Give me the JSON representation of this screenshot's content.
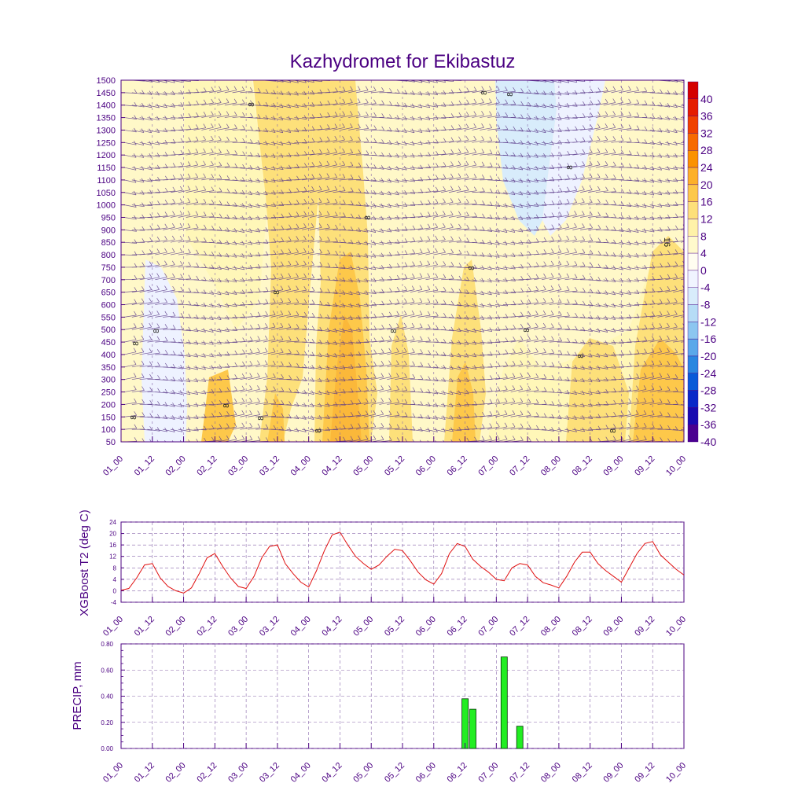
{
  "title": "Kazhydromet for Ekibastuz",
  "colors": {
    "text": "#4b0082",
    "frame": "#4b0082",
    "t2_line": "#e01010",
    "precip_bar": "#22ee22",
    "wind_barb": "#5a3a8a"
  },
  "time_ticks": [
    "01_00",
    "01_12",
    "02_00",
    "02_12",
    "03_00",
    "03_12",
    "04_00",
    "04_12",
    "05_00",
    "05_12",
    "06_00",
    "06_12",
    "07_00",
    "07_12",
    "08_00",
    "08_12",
    "09_00",
    "09_12",
    "10_00"
  ],
  "cross_section": {
    "type": "contour",
    "y_ticks": [
      "1500",
      "1450",
      "1400",
      "1350",
      "1300",
      "1250",
      "1200",
      "1150",
      "1100",
      "1050",
      "1000",
      "950",
      "900",
      "850",
      "800",
      "750",
      "700",
      "650",
      "600",
      "550",
      "500",
      "450",
      "400",
      "350",
      "300",
      "250",
      "200",
      "150",
      "100",
      "50"
    ],
    "colorbar_labels": [
      "40",
      "36",
      "32",
      "28",
      "24",
      "20",
      "16",
      "12",
      "8",
      "4",
      "0",
      "-4",
      "-8",
      "-12",
      "-16",
      "-20",
      "-24",
      "-28",
      "-32",
      "-36",
      "-40"
    ],
    "colorbar_colors": [
      "#d40000",
      "#e51c00",
      "#f04000",
      "#f76a00",
      "#fb9200",
      "#fdb02a",
      "#fdc84a",
      "#fde07a",
      "#fff2a8",
      "#fffacc",
      "#fffdf0",
      "#f0f4ff",
      "#d8ecfb",
      "#b6dcf6",
      "#8cc6f0",
      "#5aa8ea",
      "#2a86e0",
      "#0a5ad8",
      "#0a28c8",
      "#1a0ab0",
      "#4a0090"
    ],
    "contour_labels": [
      "8",
      "8",
      "8",
      "8",
      "8",
      "8",
      "8",
      "8",
      "8",
      "8",
      "8",
      "8",
      "8",
      "8",
      "8",
      "8",
      "8",
      "16"
    ]
  },
  "t2_panel": {
    "type": "line",
    "ylabel": "XGBoost T2 (deg C)",
    "y_ticks": [
      "24",
      "20",
      "16",
      "12",
      "8",
      "4",
      "0",
      "-4"
    ],
    "ylim": [
      -4,
      24
    ],
    "x": [
      0,
      1,
      2,
      3,
      4,
      5,
      6,
      7,
      8,
      9,
      10,
      11,
      12,
      13,
      14,
      15,
      16,
      17,
      18,
      19,
      20,
      21,
      22,
      23,
      24,
      25,
      26,
      27,
      28,
      29,
      30,
      31,
      32,
      33,
      34,
      35,
      36,
      37,
      38,
      39,
      40,
      41,
      42,
      43,
      44,
      45,
      46,
      47,
      48,
      49,
      50,
      51,
      52,
      53,
      54,
      55,
      56,
      57,
      58,
      59,
      60,
      61,
      62,
      63,
      64,
      65,
      66,
      67,
      68,
      69,
      70,
      71,
      72
    ],
    "values": [
      0.2,
      0.8,
      4.5,
      9,
      9.5,
      4.5,
      1.5,
      0,
      -0.8,
      1,
      6,
      11.5,
      13,
      8.5,
      4.5,
      1.5,
      0.8,
      5,
      11.5,
      15.5,
      16,
      9.5,
      6,
      3,
      1.3,
      7,
      14,
      19.5,
      20.5,
      16,
      12,
      9.5,
      7.5,
      9,
      12,
      14.5,
      14,
      10.5,
      6.5,
      3.8,
      2.3,
      6,
      13,
      16.5,
      15.5,
      11,
      8.5,
      6.5,
      4,
      3.5,
      8,
      9.5,
      9,
      5,
      2.8,
      2,
      1,
      5,
      10,
      13.5,
      13.5,
      9.5,
      7,
      5,
      3,
      8,
      13,
      16.5,
      17.2,
      12.5,
      10,
      7.5,
      5.5
    ]
  },
  "precip_panel": {
    "type": "bar",
    "ylabel": "PRECIP, mm",
    "y_ticks": [
      "0.80",
      "0.60",
      "0.40",
      "0.20",
      "0.00"
    ],
    "ylim": [
      0,
      0.8
    ],
    "bars": [
      {
        "x": 44,
        "value": 0.38
      },
      {
        "x": 45,
        "value": 0.3
      },
      {
        "x": 49,
        "value": 0.7
      },
      {
        "x": 51,
        "value": 0.17
      }
    ]
  }
}
